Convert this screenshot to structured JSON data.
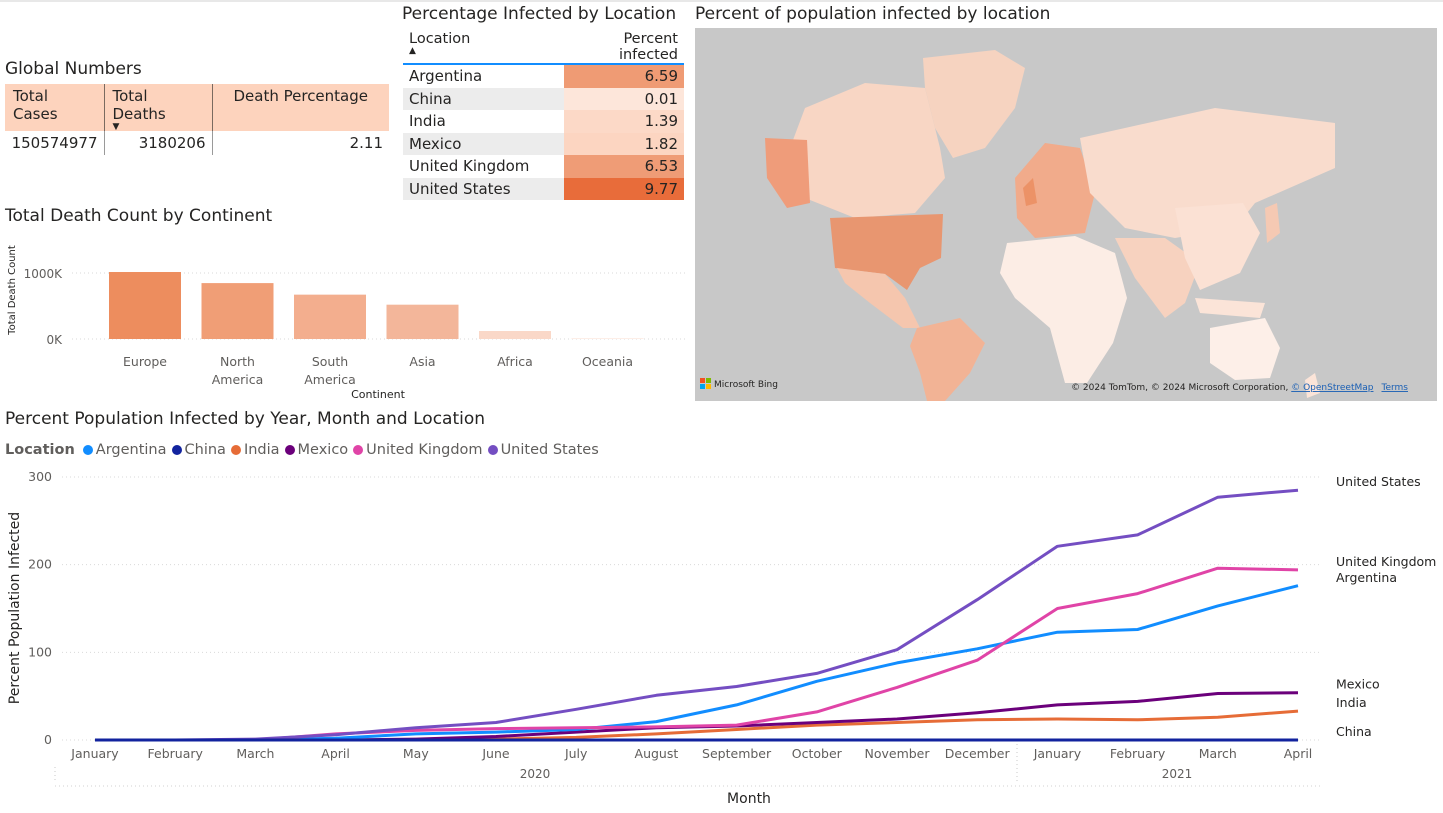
{
  "global_numbers": {
    "title": "Global Numbers",
    "headers": [
      "Total Cases",
      "Total Deaths",
      "Death Percentage"
    ],
    "row": [
      "150574977",
      "3180206",
      "2.11"
    ]
  },
  "pct_table": {
    "title": "Percentage Infected by Location",
    "headers": [
      "Location",
      "Percent infected"
    ],
    "rows": [
      {
        "location": "Argentina",
        "value": "6.59",
        "color": "#ef9b74"
      },
      {
        "location": "China",
        "value": "0.01",
        "color": "#fde6da"
      },
      {
        "location": "India",
        "value": "1.39",
        "color": "#fcd9c7"
      },
      {
        "location": "Mexico",
        "value": "1.82",
        "color": "#fcd5c1"
      },
      {
        "location": "United Kingdom",
        "value": "6.53",
        "color": "#ef9c76"
      },
      {
        "location": "United States",
        "value": "9.77",
        "color": "#e86c3a"
      }
    ]
  },
  "map": {
    "title": "Percent of population infected by location",
    "bing_label": "Microsoft Bing",
    "credit": "© 2024 TomTom, © 2024 Microsoft Corporation, ",
    "osm_link": "© OpenStreetMap",
    "terms_link": "Terms"
  },
  "continent_chart": {
    "title": "Total Death Count by Continent",
    "y_label": "Total Death Count",
    "y_ticks": [
      "1000K",
      "0K"
    ],
    "x_label": "Continent"
  },
  "line_chart": {
    "title": "Percent Population Infected by Year, Month and Location",
    "legend_title": "Location",
    "y_label": "Percent Population Infected",
    "x_label": "Month",
    "y_ticks": [
      "300",
      "200",
      "100",
      "0"
    ],
    "years": [
      "2020",
      "2021"
    ]
  },
  "chart_data": [
    {
      "type": "bar",
      "title": "Total Death Count by Continent",
      "xlabel": "Continent",
      "ylabel": "Total Death Count",
      "categories": [
        "Europe",
        "North America",
        "South America",
        "Asia",
        "Africa",
        "Oceania"
      ],
      "category_lines": [
        [
          "Europe"
        ],
        [
          "North",
          "America"
        ],
        [
          "South",
          "America"
        ],
        [
          "Asia"
        ],
        [
          "Africa"
        ],
        [
          "Oceania"
        ]
      ],
      "values": [
        1015000,
        847000,
        672000,
        520000,
        121000,
        1000
      ],
      "colors": [
        "#ed8d5e",
        "#f09e76",
        "#f3ae8e",
        "#f3b69a",
        "#fad8c8",
        "#fdeee7"
      ],
      "ylim": [
        0,
        1000000
      ],
      "grid": true
    },
    {
      "type": "line",
      "title": "Percent Population Infected by Year, Month and Location",
      "xlabel": "Month",
      "ylabel": "Percent Population Infected",
      "x": [
        "January",
        "February",
        "March",
        "April",
        "May",
        "June",
        "July",
        "August",
        "September",
        "October",
        "November",
        "December",
        "January",
        "February",
        "March",
        "April"
      ],
      "ylim": [
        0,
        300
      ],
      "legend_position": "top-left",
      "grid": true,
      "series": [
        {
          "name": "Argentina",
          "color": "#118dff",
          "values": [
            0,
            0,
            0,
            2,
            7,
            9,
            12,
            21,
            40,
            67,
            88,
            104,
            123,
            126,
            153,
            176
          ]
        },
        {
          "name": "China",
          "color": "#12239e",
          "values": [
            0,
            0,
            0,
            0,
            0,
            0,
            0,
            0,
            0,
            0,
            0,
            0,
            0,
            0,
            0,
            0
          ]
        },
        {
          "name": "India",
          "color": "#e66c37",
          "values": [
            0,
            0,
            0,
            0,
            0,
            1,
            3,
            7,
            12,
            17,
            20,
            23,
            24,
            23,
            26,
            33
          ]
        },
        {
          "name": "Mexico",
          "color": "#6b007b",
          "values": [
            0,
            0,
            0,
            0,
            1,
            4,
            9,
            14,
            16,
            20,
            24,
            31,
            40,
            44,
            53,
            54
          ]
        },
        {
          "name": "United Kingdom",
          "color": "#e044a7",
          "values": [
            0,
            0,
            0,
            7,
            11,
            13,
            14,
            15,
            17,
            32,
            60,
            91,
            150,
            167,
            196,
            194
          ]
        },
        {
          "name": "United States",
          "color": "#744ec2",
          "values": [
            0,
            0,
            1,
            6,
            14,
            20,
            35,
            51,
            61,
            76,
            103,
            160,
            221,
            234,
            277,
            285
          ]
        }
      ]
    }
  ]
}
